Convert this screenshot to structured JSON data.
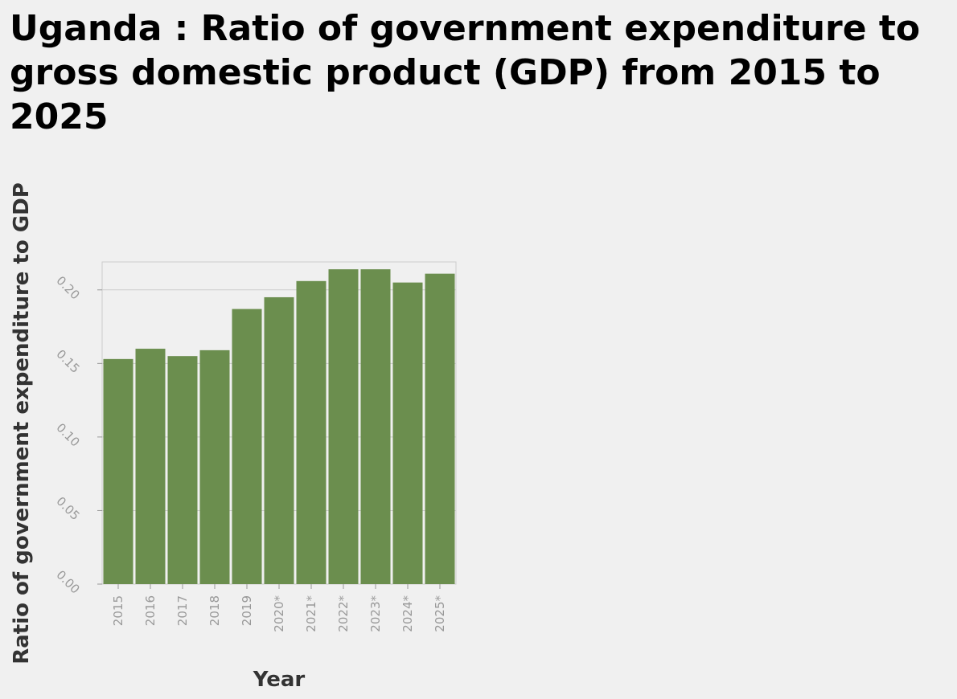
{
  "chart_data": {
    "type": "bar",
    "title": "Uganda : Ratio of government expenditure to gross domestic product (GDP) from 2015 to 2025",
    "xlabel": "Year",
    "ylabel": "Ratio of government expenditure to GDP",
    "categories": [
      "2015",
      "2016",
      "2017",
      "2018",
      "2019",
      "2020*",
      "2021*",
      "2022*",
      "2023*",
      "2024*",
      "2025*"
    ],
    "values": [
      0.153,
      0.16,
      0.155,
      0.159,
      0.187,
      0.195,
      0.206,
      0.214,
      0.214,
      0.205,
      0.211
    ],
    "ylim": [
      0,
      0.219
    ],
    "yticks": [
      "0.00",
      "0.05",
      "0.10",
      "0.15",
      "0.20"
    ],
    "grid": true,
    "legend": "none",
    "bar_color": "#6b8e4e",
    "grid_color": "#cccccc"
  }
}
